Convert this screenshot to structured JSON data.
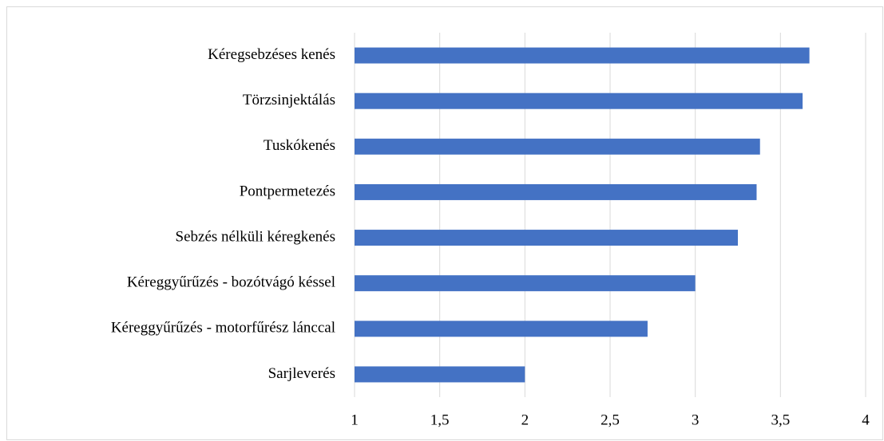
{
  "chart_data": {
    "type": "barh",
    "categories": [
      "Kéregsebzéses kenés",
      "Törzsinjektálás",
      "Tuskókenés",
      "Pontpermetezés",
      "Sebzés nélküli kéregkenés",
      "Kéreggyűrűzés - bozótvágó késsel",
      "Kéreggyűrűzés - motorfűrész lánccal",
      "Sarjleverés"
    ],
    "values": [
      3.67,
      3.63,
      3.38,
      3.36,
      3.25,
      3.0,
      2.72,
      2.0
    ],
    "color": "#4472c4",
    "xlim": [
      1,
      4
    ],
    "xticks": [
      1,
      {
        "value": 1.5,
        "label": "1,5"
      },
      2,
      {
        "value": 2.5,
        "label": "2,5"
      },
      3,
      {
        "value": 3.5,
        "label": "3,5"
      },
      4
    ],
    "grid": true
  }
}
